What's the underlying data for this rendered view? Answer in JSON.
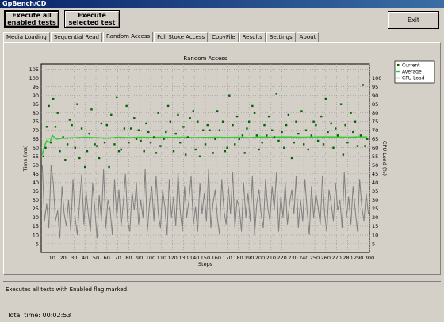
{
  "window": {
    "title": "GpBench/CD"
  },
  "toolbar": {
    "execute_all_label": "Execute all enabled tests",
    "execute_selected_label": "Execute selected test",
    "exit_label": "Exit"
  },
  "tabs": [
    {
      "label": "Media Loading"
    },
    {
      "label": "Sequential Read"
    },
    {
      "label": "Random Access"
    },
    {
      "label": "Full Stoke Access"
    },
    {
      "label": "CopyFile"
    },
    {
      "label": "Results"
    },
    {
      "label": "Settings"
    },
    {
      "label": "About"
    }
  ],
  "active_tab": "Random Access",
  "status": {
    "message": "Executes all tests with Enabled flag marked."
  },
  "footer": {
    "total_label": "Total time:",
    "total_value": "00:02:53"
  },
  "colors": {
    "current": "#006400",
    "average": "#32cd32",
    "cpu": "#808080"
  },
  "chart_data": {
    "type": "scatter",
    "title": "Random Access",
    "xlabel": "Steps",
    "ylabel": "Time (ms)",
    "y2label": "CPU Load (%)",
    "xlim": [
      0,
      300
    ],
    "ylim": [
      0,
      108
    ],
    "y2lim": [
      0,
      108
    ],
    "xticks": [
      10,
      20,
      30,
      40,
      50,
      60,
      70,
      80,
      90,
      100,
      110,
      120,
      130,
      140,
      150,
      160,
      170,
      180,
      190,
      200,
      210,
      220,
      230,
      240,
      250,
      260,
      270,
      280,
      290,
      300
    ],
    "yticks": [
      5,
      10,
      15,
      20,
      25,
      30,
      35,
      40,
      45,
      50,
      55,
      60,
      65,
      70,
      75,
      80,
      85,
      90,
      95,
      100,
      105
    ],
    "y2ticks": [
      5,
      10,
      15,
      20,
      25,
      30,
      35,
      40,
      45,
      50,
      55,
      60,
      65,
      70,
      75,
      80,
      85,
      90,
      95,
      100
    ],
    "grid": true,
    "legend": {
      "position": "top-right",
      "entries": [
        "Current",
        "Average",
        "CPU Load"
      ]
    },
    "series": [
      {
        "name": "Current",
        "kind": "points",
        "x": [
          2,
          4,
          5,
          7,
          9,
          11,
          13,
          15,
          17,
          20,
          22,
          24,
          26,
          28,
          31,
          33,
          35,
          37,
          40,
          42,
          44,
          46,
          49,
          51,
          53,
          55,
          58,
          60,
          62,
          64,
          67,
          69,
          71,
          73,
          76,
          78,
          80,
          82,
          85,
          87,
          89,
          91,
          94,
          96,
          98,
          100,
          103,
          105,
          107,
          109,
          112,
          114,
          116,
          118,
          121,
          123,
          125,
          127,
          130,
          132,
          134,
          136,
          139,
          141,
          143,
          145,
          148,
          150,
          152,
          154,
          157,
          159,
          161,
          163,
          166,
          168,
          170,
          172,
          175,
          177,
          179,
          181,
          184,
          186,
          188,
          190,
          193,
          195,
          197,
          199,
          202,
          204,
          206,
          208,
          211,
          213,
          215,
          217,
          220,
          222,
          224,
          226,
          229,
          231,
          233,
          235,
          238,
          240,
          242,
          244,
          247,
          249,
          251,
          253,
          256,
          258,
          260,
          262,
          265,
          267,
          269,
          271,
          274,
          276,
          278,
          280,
          283,
          285,
          287,
          289,
          292,
          294,
          296,
          298
        ],
        "y": [
          55,
          60,
          72,
          84,
          63,
          88,
          72,
          80,
          58,
          66,
          53,
          62,
          76,
          73,
          60,
          85,
          54,
          71,
          49,
          58,
          68,
          82,
          62,
          61,
          54,
          74,
          63,
          73,
          49,
          79,
          62,
          89,
          58,
          59,
          71,
          84,
          63,
          71,
          77,
          65,
          70,
          64,
          58,
          74,
          69,
          63,
          66,
          57,
          80,
          61,
          65,
          69,
          84,
          75,
          58,
          68,
          79,
          63,
          72,
          56,
          66,
          77,
          81,
          59,
          75,
          55,
          70,
          62,
          73,
          70,
          57,
          65,
          81,
          70,
          75,
          58,
          60,
          90,
          73,
          62,
          78,
          65,
          67,
          57,
          71,
          75,
          84,
          80,
          67,
          59,
          63,
          73,
          67,
          78,
          70,
          66,
          91,
          64,
          69,
          60,
          73,
          79,
          54,
          63,
          75,
          68,
          81,
          62,
          70,
          59,
          67,
          75,
          73,
          64,
          78,
          62,
          88,
          69,
          74,
          60,
          71,
          67,
          85,
          56,
          73,
          63,
          80,
          69,
          75,
          61,
          67,
          96,
          61,
          65
        ]
      },
      {
        "name": "Average",
        "kind": "line",
        "x": [
          1,
          3,
          5,
          8,
          10,
          14,
          20,
          30,
          40,
          50,
          60,
          70,
          80,
          90,
          100,
          110,
          120,
          130,
          140,
          150,
          160,
          170,
          180,
          190,
          200,
          210,
          220,
          230,
          240,
          250,
          260,
          270,
          280,
          290,
          298
        ],
        "y": [
          56,
          61,
          64,
          63,
          67,
          65,
          65.5,
          65.7,
          66,
          65.8,
          65.5,
          66,
          65.8,
          66,
          65.9,
          66,
          65.9,
          66,
          65.8,
          65.9,
          66,
          65.9,
          66,
          65.8,
          66.1,
          66,
          66.2,
          66.1,
          66,
          66.1,
          66.2,
          66.1,
          66,
          66.2,
          66.2
        ]
      },
      {
        "name": "CPU Load",
        "kind": "line",
        "axis": "y2",
        "x": [
          1,
          3,
          5,
          7,
          9,
          11,
          13,
          15,
          17,
          19,
          21,
          23,
          25,
          27,
          29,
          31,
          33,
          35,
          37,
          39,
          41,
          43,
          45,
          47,
          49,
          51,
          53,
          55,
          57,
          59,
          61,
          63,
          65,
          67,
          69,
          71,
          73,
          75,
          77,
          79,
          81,
          83,
          85,
          87,
          89,
          91,
          93,
          95,
          97,
          99,
          101,
          103,
          105,
          107,
          109,
          111,
          113,
          115,
          117,
          119,
          121,
          123,
          125,
          127,
          129,
          131,
          133,
          135,
          137,
          139,
          141,
          143,
          145,
          147,
          149,
          151,
          153,
          155,
          157,
          159,
          161,
          163,
          165,
          167,
          169,
          171,
          173,
          175,
          177,
          179,
          181,
          183,
          185,
          187,
          189,
          191,
          193,
          195,
          197,
          199,
          201,
          203,
          205,
          207,
          209,
          211,
          213,
          215,
          217,
          219,
          221,
          223,
          225,
          227,
          229,
          231,
          233,
          235,
          237,
          239,
          241,
          243,
          245,
          247,
          249,
          251,
          253,
          255,
          257,
          259,
          261,
          263,
          265,
          267,
          269,
          271,
          273,
          275,
          277,
          279,
          281,
          283,
          285,
          287,
          289,
          291,
          293,
          295,
          297,
          299
        ],
        "y": [
          50,
          18,
          28,
          14,
          50,
          40,
          18,
          24,
          8,
          38,
          22,
          15,
          30,
          12,
          42,
          20,
          10,
          28,
          45,
          16,
          35,
          22,
          12,
          40,
          25,
          8,
          33,
          18,
          48,
          14,
          30,
          24,
          10,
          42,
          20,
          36,
          15,
          28,
          45,
          18,
          12,
          35,
          24,
          40,
          16,
          30,
          20,
          48,
          12,
          28,
          38,
          18,
          44,
          22,
          14,
          36,
          26,
          10,
          42,
          20,
          32,
          15,
          46,
          24,
          12,
          38,
          20,
          30,
          44,
          16,
          26,
          12,
          40,
          22,
          34,
          18,
          48,
          14,
          28,
          36,
          20,
          10,
          42,
          24,
          16,
          38,
          22,
          46,
          14,
          30,
          26,
          12,
          40,
          20,
          34,
          18,
          44,
          10,
          28,
          36,
          22,
          14,
          42,
          26,
          18,
          38,
          24,
          46,
          12,
          32,
          20,
          40,
          16,
          28,
          36,
          22,
          44,
          14,
          30,
          18,
          42,
          24,
          10,
          38,
          20,
          34,
          26,
          16,
          44,
          22,
          12,
          36,
          28,
          18,
          40,
          24,
          30,
          14,
          46,
          20,
          32,
          16,
          38,
          24,
          12,
          42,
          26,
          18,
          34,
          22
        ]
      }
    ]
  }
}
